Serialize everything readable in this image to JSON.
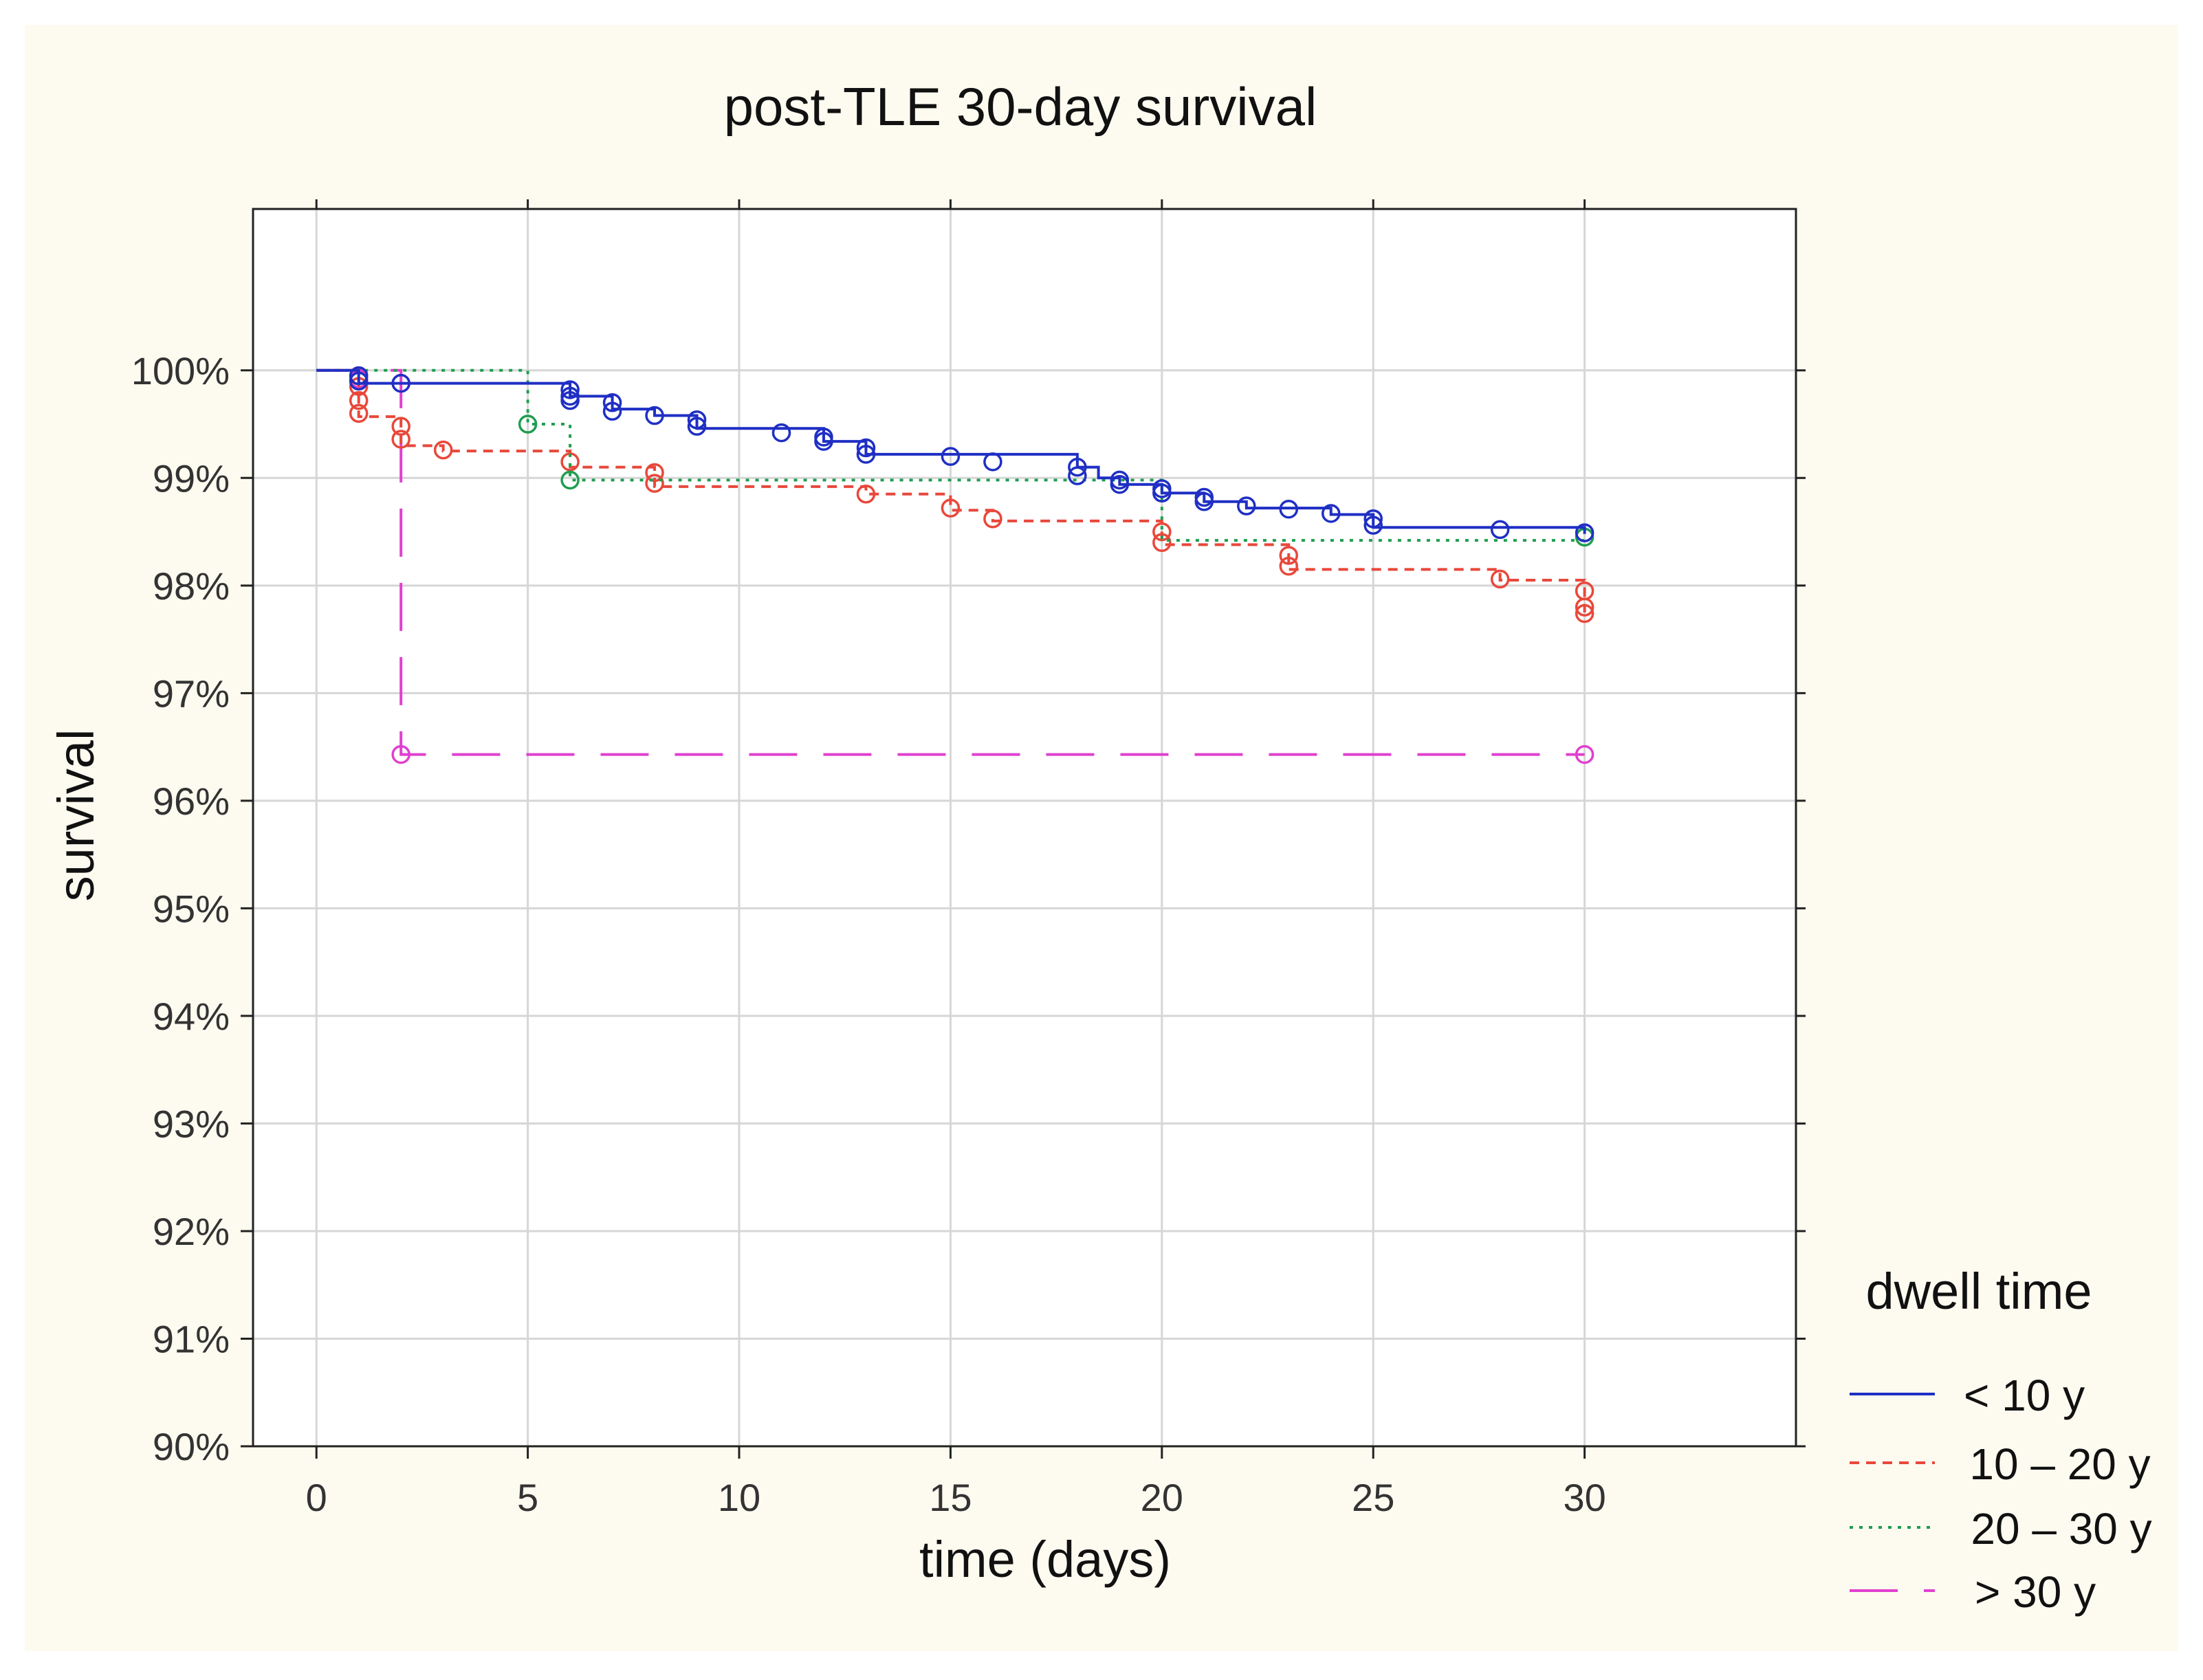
{
  "chart_data": {
    "type": "line",
    "subtype": "kaplan-meier step",
    "title": "post-TLE 30-day survival",
    "xlabel": "time (days)",
    "ylabel": "survival",
    "xlim": [
      -1.5,
      35
    ],
    "ylim": [
      90,
      101.5
    ],
    "x_ticks": [
      0,
      5,
      10,
      15,
      20,
      25,
      30
    ],
    "x_tick_labels": [
      "0",
      "5",
      "10",
      "15",
      "20",
      "25",
      "30"
    ],
    "y_ticks": [
      90,
      91,
      92,
      93,
      94,
      95,
      96,
      97,
      98,
      99,
      100
    ],
    "y_tick_labels": [
      "90%",
      "91%",
      "92%",
      "93%",
      "94%",
      "95%",
      "96%",
      "97%",
      "98%",
      "99%",
      "100%"
    ],
    "grid": true,
    "legend": {
      "title": "dwell time",
      "position": "right-bottom"
    },
    "background": "#fdfbf0",
    "series": [
      {
        "name": "< 10 y",
        "color": "#1f2fc4",
        "dash": "solid",
        "steps": [
          [
            0,
            100
          ],
          [
            1,
            99.88
          ],
          [
            6,
            99.76
          ],
          [
            7,
            99.64
          ],
          [
            8,
            99.58
          ],
          [
            9,
            99.46
          ],
          [
            12,
            99.34
          ],
          [
            13,
            99.22
          ],
          [
            18,
            99.1
          ],
          [
            18.5,
            99.0
          ],
          [
            19,
            98.94
          ],
          [
            20,
            98.86
          ],
          [
            21,
            98.78
          ],
          [
            22,
            98.72
          ],
          [
            24,
            98.66
          ],
          [
            25,
            98.54
          ],
          [
            30,
            98.48
          ]
        ],
        "censored": [
          [
            1,
            99.95
          ],
          [
            1,
            99.9
          ],
          [
            2,
            99.88
          ],
          [
            6,
            99.82
          ],
          [
            6,
            99.76
          ],
          [
            6,
            99.72
          ],
          [
            7,
            99.7
          ],
          [
            7,
            99.62
          ],
          [
            8,
            99.58
          ],
          [
            9,
            99.54
          ],
          [
            9,
            99.48
          ],
          [
            11,
            99.42
          ],
          [
            12,
            99.38
          ],
          [
            12,
            99.34
          ],
          [
            13,
            99.28
          ],
          [
            13,
            99.22
          ],
          [
            15,
            99.2
          ],
          [
            16,
            99.15
          ],
          [
            18,
            99.1
          ],
          [
            18,
            99.02
          ],
          [
            19,
            98.98
          ],
          [
            19,
            98.94
          ],
          [
            20,
            98.9
          ],
          [
            20,
            98.86
          ],
          [
            21,
            98.82
          ],
          [
            21,
            98.78
          ],
          [
            22,
            98.74
          ],
          [
            23,
            98.71
          ],
          [
            24,
            98.67
          ],
          [
            25,
            98.62
          ],
          [
            25,
            98.56
          ],
          [
            28,
            98.52
          ],
          [
            30,
            98.49
          ]
        ]
      },
      {
        "name": "10 – 20 y",
        "color": "#e8483b",
        "dash": "short",
        "steps": [
          [
            0,
            100
          ],
          [
            1,
            99.57
          ],
          [
            2,
            99.3
          ],
          [
            3,
            99.25
          ],
          [
            6,
            99.1
          ],
          [
            8,
            98.92
          ],
          [
            13,
            98.85
          ],
          [
            15,
            98.7
          ],
          [
            16,
            98.6
          ],
          [
            20,
            98.38
          ],
          [
            23,
            98.15
          ],
          [
            28,
            98.05
          ],
          [
            30,
            97.75
          ]
        ],
        "censored": [
          [
            1,
            99.95
          ],
          [
            1,
            99.85
          ],
          [
            1,
            99.72
          ],
          [
            1,
            99.6
          ],
          [
            2,
            99.48
          ],
          [
            2,
            99.36
          ],
          [
            3,
            99.26
          ],
          [
            6,
            99.15
          ],
          [
            8,
            99.05
          ],
          [
            8,
            98.95
          ],
          [
            13,
            98.85
          ],
          [
            15,
            98.72
          ],
          [
            16,
            98.62
          ],
          [
            20,
            98.5
          ],
          [
            20,
            98.4
          ],
          [
            23,
            98.28
          ],
          [
            23,
            98.18
          ],
          [
            28,
            98.06
          ],
          [
            30,
            97.95
          ],
          [
            30,
            97.8
          ],
          [
            30,
            97.74
          ]
        ]
      },
      {
        "name": "20 – 30 y",
        "color": "#1f9e50",
        "dash": "dotted",
        "steps": [
          [
            0,
            100
          ],
          [
            5,
            99.5
          ],
          [
            6,
            98.98
          ],
          [
            20,
            98.42
          ],
          [
            30,
            98.42
          ]
        ],
        "censored": [
          [
            5,
            99.5
          ],
          [
            6,
            98.98
          ],
          [
            30,
            98.45
          ]
        ]
      },
      {
        "name": "> 30 y",
        "color": "#e040d0",
        "dash": "long",
        "steps": [
          [
            0,
            100
          ],
          [
            2,
            96.43
          ],
          [
            30,
            96.43
          ]
        ],
        "censored": [
          [
            1,
            99.92
          ],
          [
            2,
            99.88
          ],
          [
            2,
            96.43
          ],
          [
            30,
            96.43
          ]
        ]
      }
    ]
  }
}
